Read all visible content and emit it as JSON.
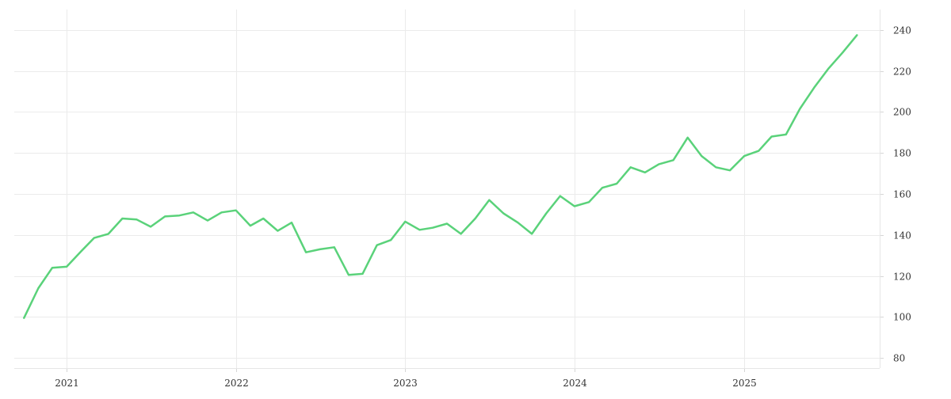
{
  "chart_data": {
    "type": "line",
    "title": "",
    "xlabel": "",
    "ylabel": "",
    "ylim": [
      75,
      250
    ],
    "y_ticks": [
      80,
      100,
      120,
      140,
      160,
      180,
      200,
      220,
      240
    ],
    "y_tick_labels": [
      "80",
      "100",
      "120",
      "140",
      "160",
      "180",
      "200",
      "220",
      "240"
    ],
    "x_ticks": [
      "2021-01-01",
      "2022-01-01",
      "2023-01-01",
      "2024-01-01",
      "2025-01-01"
    ],
    "x_tick_labels": [
      "2021",
      "2022",
      "2023",
      "2024",
      "2025"
    ],
    "x_range": [
      "2020-09-10",
      "2025-10-20"
    ],
    "y_axis_position": "right",
    "grid": true,
    "legend": "none",
    "series": [
      {
        "color": "#5ad27a",
        "x": [
          "2020-10-01",
          "2020-11-01",
          "2020-12-01",
          "2021-01-01",
          "2021-02-01",
          "2021-03-01",
          "2021-04-01",
          "2021-05-01",
          "2021-06-01",
          "2021-07-01",
          "2021-08-01",
          "2021-09-01",
          "2021-10-01",
          "2021-11-01",
          "2021-12-01",
          "2022-01-01",
          "2022-02-01",
          "2022-03-01",
          "2022-04-01",
          "2022-05-01",
          "2022-06-01",
          "2022-07-01",
          "2022-08-01",
          "2022-09-01",
          "2022-10-01",
          "2022-11-01",
          "2022-12-01",
          "2023-01-01",
          "2023-02-01",
          "2023-03-01",
          "2023-04-01",
          "2023-05-01",
          "2023-06-01",
          "2023-07-01",
          "2023-08-01",
          "2023-09-01",
          "2023-10-01",
          "2023-11-01",
          "2023-12-01",
          "2024-01-01",
          "2024-02-01",
          "2024-03-01",
          "2024-04-01",
          "2024-05-01",
          "2024-06-01",
          "2024-07-01",
          "2024-08-01",
          "2024-09-01",
          "2024-10-01",
          "2024-11-01",
          "2024-12-01",
          "2025-01-01",
          "2025-02-01",
          "2025-03-01",
          "2025-04-01",
          "2025-05-01",
          "2025-06-01",
          "2025-07-01",
          "2025-08-01",
          "2025-09-01"
        ],
        "values": [
          99.5,
          114,
          124,
          124.5,
          132,
          138.5,
          140.5,
          148,
          147.5,
          144,
          149,
          149.5,
          151,
          147,
          151,
          152,
          144.5,
          148,
          142,
          146,
          131.5,
          133,
          134,
          120.5,
          121,
          135,
          137.5,
          146.5,
          142.5,
          143.5,
          145.5,
          140.5,
          148,
          157,
          150.5,
          146,
          140.5,
          150.5,
          159,
          154,
          156,
          163,
          165,
          173,
          170.5,
          174.5,
          176.5,
          187.5,
          178.5,
          173,
          171.5,
          178.5,
          181,
          188,
          189,
          201.5,
          212,
          221,
          229,
          237.5
        ]
      }
    ]
  }
}
